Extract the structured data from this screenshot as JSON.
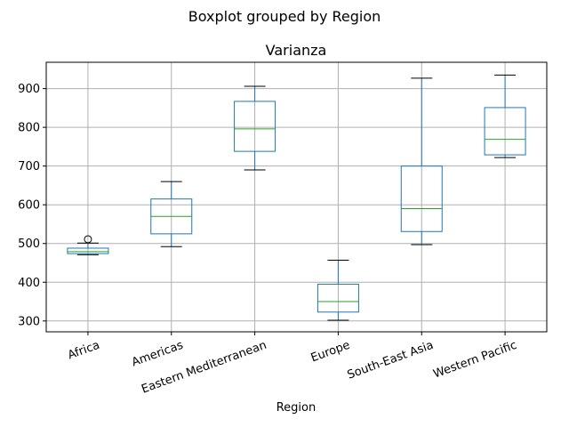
{
  "suptitle": "Boxplot grouped by Region",
  "colors": {
    "box": "#1f77b4",
    "median": "#2ca02c",
    "whisker": "#000000",
    "grid": "#b0b0b0"
  },
  "chart_data": {
    "type": "boxplot",
    "title": "Varianza",
    "xlabel": "Region",
    "ylabel": "",
    "ylim": [
      272,
      968
    ],
    "yticks": [
      300,
      400,
      500,
      600,
      700,
      800,
      900
    ],
    "grid": true,
    "categories": [
      "Africa",
      "Americas",
      "Eastern Mediterranean",
      "Europe",
      "South-East Asia",
      "Western Pacific"
    ],
    "boxes": [
      {
        "label": "Africa",
        "whislo": 471,
        "q1": 474,
        "med": 479,
        "q3": 488,
        "whishi": 501,
        "fliers": [
          511
        ]
      },
      {
        "label": "Americas",
        "whislo": 492,
        "q1": 525,
        "med": 570,
        "q3": 615,
        "whishi": 660,
        "fliers": []
      },
      {
        "label": "Eastern Mediterranean",
        "whislo": 690,
        "q1": 738,
        "med": 796,
        "q3": 867,
        "whishi": 906,
        "fliers": []
      },
      {
        "label": "Europe",
        "whislo": 302,
        "q1": 323,
        "med": 350,
        "q3": 395,
        "whishi": 457,
        "fliers": []
      },
      {
        "label": "South-East Asia",
        "whislo": 497,
        "q1": 531,
        "med": 590,
        "q3": 700,
        "whishi": 927,
        "fliers": []
      },
      {
        "label": "Western Pacific",
        "whislo": 722,
        "q1": 729,
        "med": 769,
        "q3": 851,
        "whishi": 935,
        "fliers": []
      }
    ]
  }
}
